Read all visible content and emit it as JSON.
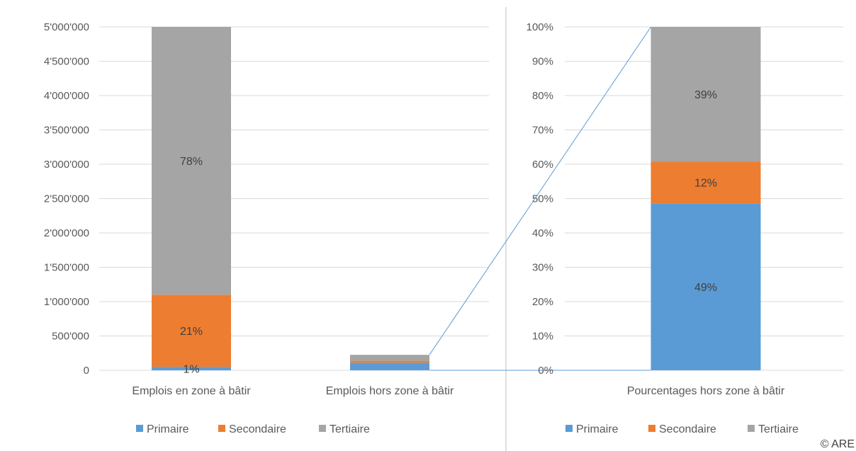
{
  "copyright": "© ARE",
  "colors": {
    "Primaire": "#5b9bd5",
    "Secondaire": "#ed7d31",
    "Tertiaire": "#a5a5a5",
    "grid": "#d9d9d9",
    "connector": "#5b9bd5"
  },
  "legend": [
    "Primaire",
    "Secondaire",
    "Tertiaire"
  ],
  "chart_data": [
    {
      "type": "bar",
      "stacked": true,
      "title": "",
      "xlabel": "",
      "ylabel": "",
      "ylim": [
        0,
        5000000
      ],
      "y_ticks": [
        "0",
        "500'000",
        "1'000'000",
        "1'500'000",
        "2'000'000",
        "2'500'000",
        "3'000'000",
        "3'500'000",
        "4'000'000",
        "4'500'000",
        "5'000'000"
      ],
      "y_tick_step": 500000,
      "categories": [
        "Emplois en zone à bâtir",
        "Emplois hors zone à bâtir"
      ],
      "series": [
        {
          "name": "Primaire",
          "values": [
            50000,
            110000
          ],
          "labels": [
            "1%",
            ""
          ]
        },
        {
          "name": "Secondaire",
          "values": [
            1050000,
            28000
          ],
          "labels": [
            "21%",
            ""
          ]
        },
        {
          "name": "Tertiaire",
          "values": [
            3900000,
            87000
          ],
          "labels": [
            "78%",
            ""
          ]
        }
      ],
      "grid": true,
      "legend_position": "bottom"
    },
    {
      "type": "bar",
      "stacked": true,
      "title": "",
      "xlabel": "",
      "ylabel": "",
      "ylim": [
        0,
        100
      ],
      "y_ticks": [
        "0%",
        "10%",
        "20%",
        "30%",
        "40%",
        "50%",
        "60%",
        "70%",
        "80%",
        "90%",
        "100%"
      ],
      "y_tick_step": 10,
      "categories": [
        "Pourcentages hors zone à bâtir"
      ],
      "series": [
        {
          "name": "Primaire",
          "values": [
            48.6
          ],
          "labels": [
            "49%"
          ]
        },
        {
          "name": "Secondaire",
          "values": [
            12.2
          ],
          "labels": [
            "12%"
          ]
        },
        {
          "name": "Tertiaire",
          "values": [
            39.2
          ],
          "labels": [
            "39%"
          ]
        }
      ],
      "grid": true,
      "legend_position": "bottom"
    }
  ]
}
